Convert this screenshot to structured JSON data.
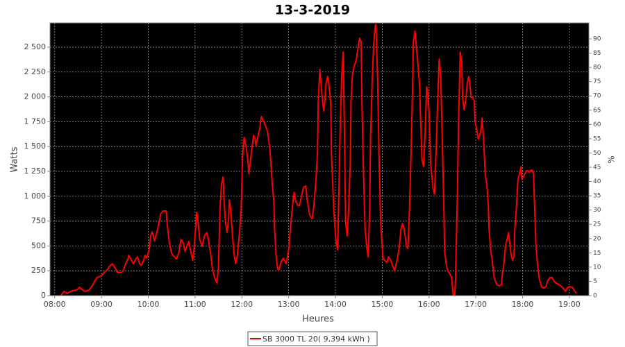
{
  "chart_data": {
    "type": "line",
    "title": "13-3-2019",
    "x_label": "Heures",
    "y_label": "Watts",
    "y2_label": "%",
    "xlim": [
      474,
      1165
    ],
    "xticks": [
      {
        "value": 480,
        "label": "08:00"
      },
      {
        "value": 540,
        "label": "09:00"
      },
      {
        "value": 600,
        "label": "10:00"
      },
      {
        "value": 660,
        "label": "11:00"
      },
      {
        "value": 720,
        "label": "12:00"
      },
      {
        "value": 780,
        "label": "13:00"
      },
      {
        "value": 840,
        "label": "14:00"
      },
      {
        "value": 900,
        "label": "15:00"
      },
      {
        "value": 960,
        "label": "16:00"
      },
      {
        "value": 1020,
        "label": "17:00"
      },
      {
        "value": 1080,
        "label": "18:00"
      },
      {
        "value": 1140,
        "label": "19:00"
      }
    ],
    "ylim": [
      0,
      2744
    ],
    "yticks": [
      0,
      250,
      500,
      750,
      {
        "value": 1000,
        "label": "1 000"
      },
      {
        "value": 1250,
        "label": "1 250"
      },
      {
        "value": 1500,
        "label": "1 500"
      },
      {
        "value": 1750,
        "label": "1 750"
      },
      {
        "value": 2000,
        "label": "2 000"
      },
      {
        "value": 2250,
        "label": "2 250"
      },
      {
        "value": 2500,
        "label": "2 500"
      }
    ],
    "y2lim": [
      0,
      95.6
    ],
    "y2ticks": [
      0,
      5,
      10,
      15,
      20,
      25,
      30,
      35,
      40,
      45,
      50,
      55,
      60,
      65,
      70,
      75,
      80,
      85,
      90
    ],
    "grid": true,
    "legend": "bottom",
    "x": [
      488,
      492,
      496,
      500,
      503,
      508,
      512,
      516,
      519,
      524,
      528,
      532,
      534,
      537,
      541,
      544,
      548,
      550,
      554,
      557,
      560,
      565,
      568,
      571,
      574,
      575,
      578,
      581,
      583,
      586,
      589,
      591,
      594,
      596,
      598,
      601,
      603,
      605,
      608,
      611,
      614,
      616,
      619,
      623,
      624,
      627,
      630,
      632,
      636,
      639,
      642,
      645,
      647,
      650,
      652,
      655,
      657,
      659,
      662,
      663,
      666,
      669,
      672,
      675,
      677,
      680,
      682,
      685,
      688,
      690,
      692,
      694,
      696,
      697,
      699,
      701,
      703,
      704,
      706,
      708,
      710,
      712,
      714,
      717,
      719,
      721,
      723,
      726,
      728,
      729,
      732,
      735,
      737,
      738,
      740,
      743,
      745,
      748,
      751,
      753,
      756,
      759,
      761,
      762,
      764,
      766,
      768,
      770,
      773,
      776,
      777,
      780,
      783,
      786,
      787,
      789,
      792,
      794,
      796,
      799,
      802,
      804,
      807,
      810,
      812,
      815,
      817,
      818,
      820,
      823,
      825,
      826,
      828,
      830,
      832,
      834,
      835,
      838,
      841,
      843,
      844,
      846,
      848,
      850,
      852,
      853,
      855,
      857,
      859,
      860,
      862,
      865,
      867,
      869,
      871,
      873,
      874,
      876,
      878,
      880,
      882,
      884,
      885,
      887,
      889,
      891,
      892,
      894,
      896,
      898,
      900,
      901,
      903,
      906,
      908,
      911,
      914,
      916,
      919,
      922,
      924,
      926,
      928,
      930,
      931,
      933,
      935,
      937,
      939,
      940,
      942,
      944,
      946,
      948,
      949,
      951,
      953,
      955,
      957,
      958,
      960,
      962,
      965,
      967,
      969,
      971,
      973,
      975,
      977,
      979,
      980,
      982,
      984,
      987,
      989,
      991,
      993,
      994,
      996,
      998,
      1000,
      1002,
      1003,
      1005,
      1007,
      1009,
      1011,
      1012,
      1014,
      1016,
      1018,
      1019,
      1021,
      1023,
      1025,
      1027,
      1028,
      1030,
      1032,
      1034,
      1036,
      1037,
      1039,
      1041,
      1043,
      1044,
      1047,
      1050,
      1053,
      1054,
      1056,
      1058,
      1060,
      1062,
      1063,
      1065,
      1067,
      1069,
      1070,
      1072,
      1074,
      1076,
      1078,
      1079,
      1081,
      1083,
      1085,
      1087,
      1088,
      1090,
      1092,
      1094,
      1095,
      1097,
      1099,
      1101,
      1103,
      1104,
      1107,
      1110,
      1112,
      1115,
      1118,
      1120,
      1123,
      1127,
      1129,
      1132,
      1135,
      1137,
      1140,
      1144,
      1146,
      1149
    ],
    "series": [
      {
        "name": "SB 3000 TL 20( 9,394 kWh )",
        "color": "#ff0000",
        "values": [
          0,
          42,
          21,
          42,
          49,
          56,
          84,
          56,
          42,
          56,
          98,
          154,
          182,
          189,
          209,
          237,
          265,
          293,
          321,
          286,
          237,
          230,
          251,
          321,
          370,
          405,
          363,
          321,
          356,
          391,
          321,
          307,
          356,
          405,
          377,
          461,
          600,
          642,
          551,
          635,
          740,
          824,
          852,
          852,
          740,
          530,
          426,
          405,
          370,
          426,
          565,
          530,
          447,
          510,
          545,
          426,
          356,
          496,
          838,
          810,
          565,
          496,
          600,
          635,
          565,
          426,
          286,
          182,
          126,
          286,
          880,
          1124,
          1194,
          984,
          740,
          635,
          775,
          964,
          845,
          600,
          426,
          321,
          391,
          635,
          845,
          1403,
          1592,
          1473,
          1334,
          1229,
          1424,
          1613,
          1578,
          1508,
          1578,
          1683,
          1802,
          1752,
          1696,
          1648,
          1473,
          1124,
          950,
          670,
          391,
          265,
          265,
          335,
          377,
          335,
          321,
          461,
          740,
          984,
          1040,
          950,
          908,
          908,
          984,
          1089,
          1103,
          950,
          810,
          775,
          880,
          1159,
          1438,
          1962,
          2276,
          1997,
          1857,
          1927,
          2137,
          2206,
          2102,
          1927,
          1403,
          845,
          530,
          461,
          880,
          1648,
          2206,
          2451,
          1403,
          740,
          600,
          880,
          1334,
          1962,
          2241,
          2332,
          2381,
          2500,
          2590,
          2555,
          1927,
          1229,
          670,
          496,
          391,
          880,
          1578,
          2137,
          2520,
          2716,
          2730,
          2206,
          1368,
          740,
          496,
          377,
          356,
          335,
          391,
          356,
          286,
          251,
          356,
          496,
          670,
          726,
          670,
          565,
          496,
          475,
          880,
          1438,
          2137,
          2555,
          2660,
          2485,
          2311,
          2102,
          1822,
          1368,
          1299,
          1648,
          2102,
          2067,
          1857,
          1334,
          1089,
          1020,
          1438,
          1927,
          2381,
          2206,
          1578,
          880,
          461,
          321,
          251,
          216,
          182,
          7,
          7,
          182,
          880,
          1787,
          2451,
          2346,
          1997,
          1871,
          1962,
          2137,
          2206,
          2150,
          1997,
          1997,
          1962,
          1752,
          1683,
          1578,
          1613,
          1683,
          1787,
          1578,
          1229,
          1124,
          915,
          670,
          461,
          356,
          216,
          168,
          112,
          98,
          112,
          216,
          321,
          496,
          565,
          635,
          565,
          426,
          356,
          391,
          670,
          880,
          1159,
          1229,
          1299,
          1173,
          1194,
          1229,
          1257,
          1257,
          1243,
          1257,
          1264,
          1229,
          985,
          530,
          321,
          182,
          126,
          91,
          77,
          91,
          147,
          182,
          182,
          147,
          126,
          112,
          98,
          77,
          42,
          77,
          91,
          84,
          56,
          21
        ]
      }
    ]
  }
}
